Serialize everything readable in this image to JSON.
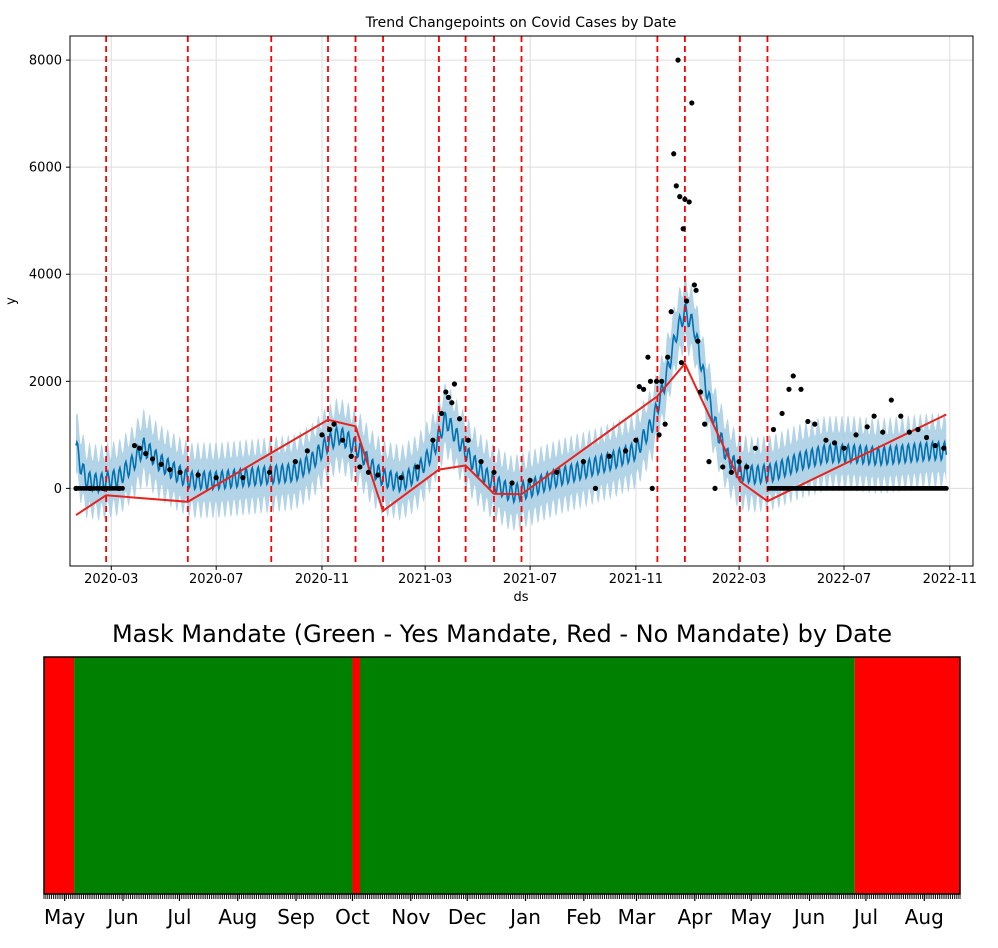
{
  "chart_data": [
    {
      "type": "line",
      "title": "Trend Changepoints on Covid Cases by Date",
      "xlabel": "ds",
      "ylabel": "y",
      "x_range": [
        "2020-01-13",
        "2022-11-28"
      ],
      "ylim": [
        -1450,
        8450
      ],
      "x_ticks": [
        {
          "date": "2020-03-01",
          "label": "2020-03"
        },
        {
          "date": "2020-07-01",
          "label": "2020-07"
        },
        {
          "date": "2020-11-01",
          "label": "2020-11"
        },
        {
          "date": "2021-03-01",
          "label": "2021-03"
        },
        {
          "date": "2021-07-01",
          "label": "2021-07"
        },
        {
          "date": "2021-11-01",
          "label": "2021-11"
        },
        {
          "date": "2022-03-01",
          "label": "2022-03"
        },
        {
          "date": "2022-07-01",
          "label": "2022-07"
        },
        {
          "date": "2022-11-01",
          "label": "2022-11"
        }
      ],
      "y_ticks": [
        0,
        2000,
        4000,
        6000,
        8000
      ],
      "grid": true,
      "colors": {
        "observed": "#000000",
        "forecast": "#0072b2",
        "uncertainty": "#a6cbe3",
        "trend": "#e8221c",
        "changepoint": "#ff0000"
      },
      "changepoints": [
        "2020-02-24",
        "2020-05-29",
        "2020-09-03",
        "2020-11-08",
        "2020-12-10",
        "2021-01-11",
        "2021-03-17",
        "2021-04-17",
        "2021-05-20",
        "2021-06-21",
        "2021-11-26",
        "2021-12-28",
        "2022-03-02",
        "2022-04-03"
      ],
      "series": [
        {
          "type": "trend",
          "points": [
            [
              "2020-01-20",
              -500
            ],
            [
              "2020-02-24",
              -130
            ],
            [
              "2020-05-29",
              -250
            ],
            [
              "2020-11-08",
              1280
            ],
            [
              "2020-12-10",
              1160
            ],
            [
              "2021-01-11",
              -420
            ],
            [
              "2021-03-17",
              350
            ],
            [
              "2021-04-17",
              430
            ],
            [
              "2021-05-20",
              -100
            ],
            [
              "2021-06-21",
              -110
            ],
            [
              "2021-11-26",
              1720
            ],
            [
              "2021-12-28",
              2330
            ],
            [
              "2022-03-02",
              130
            ],
            [
              "2022-04-03",
              -240
            ],
            [
              "2022-10-28",
              1380
            ]
          ]
        },
        {
          "type": "forecast",
          "points": [
            [
              "2020-01-20",
              800
            ],
            [
              "2020-01-25",
              450
            ],
            [
              "2020-02-01",
              150
            ],
            [
              "2020-02-15",
              100
            ],
            [
              "2020-03-10",
              200
            ],
            [
              "2020-03-25",
              450
            ],
            [
              "2020-04-08",
              780
            ],
            [
              "2020-04-25",
              500
            ],
            [
              "2020-05-15",
              300
            ],
            [
              "2020-06-01",
              150
            ],
            [
              "2020-07-01",
              150
            ],
            [
              "2020-08-01",
              200
            ],
            [
              "2020-09-01",
              250
            ],
            [
              "2020-10-01",
              300
            ],
            [
              "2020-10-20",
              500
            ],
            [
              "2020-11-05",
              800
            ],
            [
              "2020-11-20",
              1000
            ],
            [
              "2020-12-01",
              900
            ],
            [
              "2020-12-15",
              700
            ],
            [
              "2020-12-28",
              400
            ],
            [
              "2021-01-11",
              200
            ],
            [
              "2021-02-01",
              100
            ],
            [
              "2021-02-20",
              300
            ],
            [
              "2021-03-10",
              700
            ],
            [
              "2021-03-25",
              1300
            ],
            [
              "2021-04-05",
              1000
            ],
            [
              "2021-04-20",
              600
            ],
            [
              "2021-05-05",
              300
            ],
            [
              "2021-05-20",
              100
            ],
            [
              "2021-06-10",
              -100
            ],
            [
              "2021-07-01",
              0
            ],
            [
              "2021-08-01",
              200
            ],
            [
              "2021-09-01",
              350
            ],
            [
              "2021-10-01",
              500
            ],
            [
              "2021-11-01",
              700
            ],
            [
              "2021-11-20",
              1200
            ],
            [
              "2021-12-05",
              2000
            ],
            [
              "2021-12-18",
              2900
            ],
            [
              "2021-12-28",
              3300
            ],
            [
              "2022-01-08",
              3000
            ],
            [
              "2022-01-20",
              2000
            ],
            [
              "2022-02-01",
              1200
            ],
            [
              "2022-02-15",
              600
            ],
            [
              "2022-03-02",
              300
            ],
            [
              "2022-03-20",
              250
            ],
            [
              "2022-04-10",
              300
            ],
            [
              "2022-05-10",
              500
            ],
            [
              "2022-06-10",
              650
            ],
            [
              "2022-07-10",
              650
            ],
            [
              "2022-08-10",
              600
            ],
            [
              "2022-09-10",
              650
            ],
            [
              "2022-10-10",
              700
            ],
            [
              "2022-10-28",
              700
            ]
          ]
        },
        {
          "type": "observed",
          "points": [
            [
              "2020-01-20",
              0
            ],
            [
              "2020-02-05",
              0
            ],
            [
              "2020-02-20",
              0
            ],
            [
              "2020-03-10",
              0
            ],
            [
              "2020-03-28",
              800
            ],
            [
              "2020-04-03",
              750
            ],
            [
              "2020-04-10",
              650
            ],
            [
              "2020-04-18",
              550
            ],
            [
              "2020-04-28",
              450
            ],
            [
              "2020-05-08",
              350
            ],
            [
              "2020-05-20",
              300
            ],
            [
              "2020-06-10",
              250
            ],
            [
              "2020-07-01",
              200
            ],
            [
              "2020-08-01",
              200
            ],
            [
              "2020-09-01",
              300
            ],
            [
              "2020-10-01",
              500
            ],
            [
              "2020-10-15",
              700
            ],
            [
              "2020-11-01",
              1000
            ],
            [
              "2020-11-10",
              1100
            ],
            [
              "2020-11-15",
              1200
            ],
            [
              "2020-11-25",
              900
            ],
            [
              "2020-12-05",
              600
            ],
            [
              "2020-12-15",
              400
            ],
            [
              "2020-12-25",
              300
            ],
            [
              "2021-01-05",
              250
            ],
            [
              "2021-02-01",
              200
            ],
            [
              "2021-02-20",
              400
            ],
            [
              "2021-03-10",
              900
            ],
            [
              "2021-03-20",
              1400
            ],
            [
              "2021-03-25",
              1800
            ],
            [
              "2021-03-28",
              1700
            ],
            [
              "2021-04-01",
              1600
            ],
            [
              "2021-04-04",
              1950
            ],
            [
              "2021-04-10",
              1300
            ],
            [
              "2021-04-20",
              900
            ],
            [
              "2021-05-05",
              500
            ],
            [
              "2021-05-20",
              300
            ],
            [
              "2021-06-10",
              100
            ],
            [
              "2021-07-01",
              150
            ],
            [
              "2021-08-01",
              300
            ],
            [
              "2021-09-01",
              500
            ],
            [
              "2021-09-15",
              0
            ],
            [
              "2021-10-01",
              600
            ],
            [
              "2021-10-20",
              700
            ],
            [
              "2021-11-01",
              900
            ],
            [
              "2021-11-05",
              1900
            ],
            [
              "2021-11-10",
              1850
            ],
            [
              "2021-11-15",
              2450
            ],
            [
              "2021-11-18",
              2000
            ],
            [
              "2021-11-20",
              0
            ],
            [
              "2021-11-25",
              2000
            ],
            [
              "2021-11-28",
              1000
            ],
            [
              "2021-12-01",
              2000
            ],
            [
              "2021-12-05",
              1200
            ],
            [
              "2021-12-08",
              2450
            ],
            [
              "2021-12-12",
              3300
            ],
            [
              "2021-12-15",
              6250
            ],
            [
              "2021-12-18",
              5650
            ],
            [
              "2021-12-20",
              8000
            ],
            [
              "2021-12-22",
              5450
            ],
            [
              "2021-12-24",
              2350
            ],
            [
              "2021-12-26",
              4850
            ],
            [
              "2021-12-28",
              5400
            ],
            [
              "2021-12-30",
              3500
            ],
            [
              "2022-01-02",
              5350
            ],
            [
              "2022-01-05",
              7200
            ],
            [
              "2022-01-08",
              3800
            ],
            [
              "2022-01-10",
              3700
            ],
            [
              "2022-01-12",
              2750
            ],
            [
              "2022-01-15",
              1800
            ],
            [
              "2022-01-20",
              1200
            ],
            [
              "2022-01-25",
              500
            ],
            [
              "2022-02-01",
              0
            ],
            [
              "2022-02-10",
              400
            ],
            [
              "2022-02-20",
              300
            ],
            [
              "2022-03-01",
              500
            ],
            [
              "2022-03-10",
              400
            ],
            [
              "2022-03-20",
              750
            ],
            [
              "2022-04-10",
              1100
            ],
            [
              "2022-04-20",
              1400
            ],
            [
              "2022-04-28",
              1850
            ],
            [
              "2022-05-03",
              2100
            ],
            [
              "2022-05-12",
              1850
            ],
            [
              "2022-05-20",
              1250
            ],
            [
              "2022-05-28",
              1200
            ],
            [
              "2022-06-10",
              900
            ],
            [
              "2022-06-20",
              850
            ],
            [
              "2022-07-01",
              750
            ],
            [
              "2022-07-15",
              1000
            ],
            [
              "2022-07-28",
              1150
            ],
            [
              "2022-08-05",
              1350
            ],
            [
              "2022-08-15",
              1050
            ],
            [
              "2022-08-25",
              1650
            ],
            [
              "2022-09-05",
              1350
            ],
            [
              "2022-09-15",
              1050
            ],
            [
              "2022-09-25",
              1100
            ],
            [
              "2022-10-05",
              950
            ],
            [
              "2022-10-15",
              800
            ],
            [
              "2022-10-25",
              750
            ]
          ]
        }
      ]
    },
    {
      "type": "heatmap",
      "title": "Mask Mandate (Green - Yes Mandate, Red - No Mandate) by Date",
      "colors": {
        "yes": "#008000",
        "no": "#ff0000"
      },
      "month_ticks": [
        "May",
        "Jun",
        "Jul",
        "Aug",
        "Sep",
        "Oct",
        "Nov",
        "Dec",
        "Jan",
        "Feb",
        "Mar",
        "Apr",
        "May",
        "Jun",
        "Jul",
        "Aug"
      ],
      "x_range": [
        "2021-04-20",
        "2022-08-20"
      ],
      "segments": [
        {
          "start": "2021-04-20",
          "end": "2021-05-06",
          "mandate": "No"
        },
        {
          "start": "2021-05-06",
          "end": "2021-10-01",
          "mandate": "Yes"
        },
        {
          "start": "2021-10-01",
          "end": "2021-10-05",
          "mandate": "No"
        },
        {
          "start": "2021-10-05",
          "end": "2022-06-25",
          "mandate": "Yes"
        },
        {
          "start": "2022-06-25",
          "end": "2022-08-20",
          "mandate": "No"
        }
      ]
    }
  ]
}
